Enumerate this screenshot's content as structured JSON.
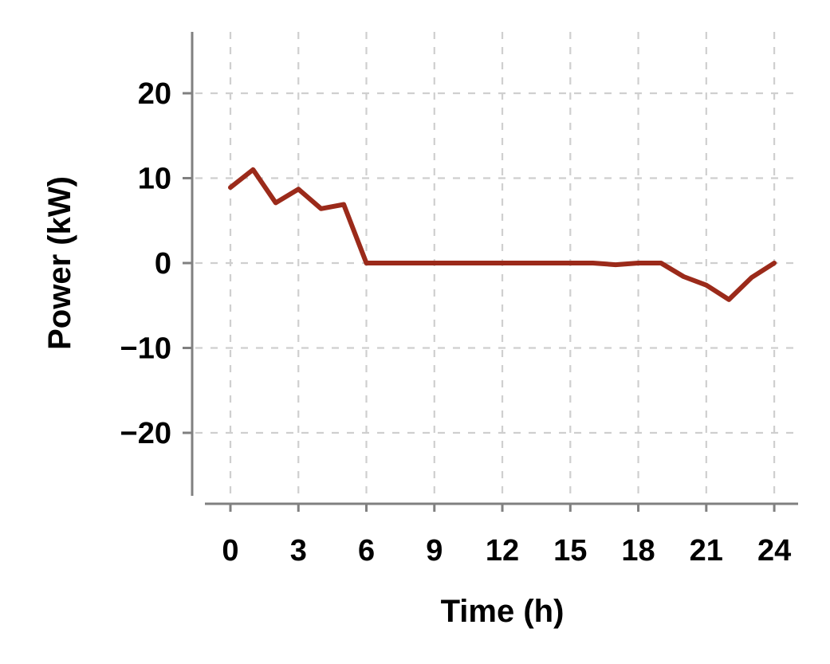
{
  "chart_data": {
    "type": "line",
    "title": "",
    "xlabel": "Time (h)",
    "ylabel": "Power (kW)",
    "xlim": [
      -1.7,
      25
    ],
    "ylim": [
      -27,
      27
    ],
    "xticks": [
      0,
      3,
      6,
      9,
      12,
      15,
      18,
      21,
      24
    ],
    "yticks": [
      20,
      10,
      0,
      -10,
      -20
    ],
    "ytick_labels": [
      "20",
      "10",
      "0",
      "−10",
      "−20"
    ],
    "grid": true,
    "legend": "none",
    "series": [
      {
        "color": "#9b2a1a",
        "x": [
          0,
          1,
          2,
          3,
          4,
          5,
          6,
          7,
          8,
          9,
          10,
          11,
          12,
          13,
          14,
          15,
          16,
          17,
          18,
          19,
          20,
          21,
          22,
          23,
          24
        ],
        "y": [
          8.9,
          11.0,
          7.1,
          8.7,
          6.4,
          6.9,
          0,
          0,
          0,
          0,
          0,
          0,
          0,
          0,
          0,
          0,
          0,
          -0.2,
          0,
          0,
          -1.6,
          -2.6,
          -4.3,
          -1.7,
          0
        ]
      }
    ]
  }
}
